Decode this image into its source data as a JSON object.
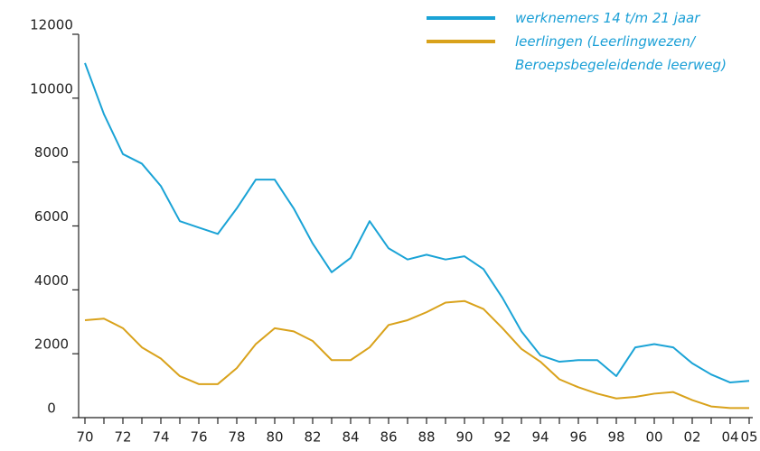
{
  "chart_data": {
    "type": "line",
    "categories": [
      "70",
      null,
      "72",
      null,
      "74",
      null,
      "76",
      null,
      "78",
      null,
      "80",
      null,
      "82",
      null,
      "84",
      null,
      "86",
      null,
      "88",
      null,
      "90",
      null,
      "92",
      null,
      "94",
      null,
      "96",
      null,
      "98",
      null,
      "00",
      null,
      "02",
      null,
      "04",
      "05"
    ],
    "series": [
      {
        "name": "werknemers 14 t/m 21 jaar",
        "color": "#1aa3d6",
        "values": [
          11100,
          9500,
          8250,
          7950,
          7250,
          6150,
          5950,
          5750,
          6550,
          7450,
          7450,
          6550,
          5450,
          4550,
          5000,
          6150,
          5300,
          4950,
          5100,
          4950,
          5050,
          4650,
          3750,
          2700,
          1950,
          1750,
          1800,
          1800,
          1300,
          2200,
          2300,
          2200,
          1700,
          1350,
          1100,
          1150
        ]
      },
      {
        "name": "leerlingen (Leerlingwezen/ Beroepsbegeleidende leerweg)",
        "color": "#d9a21b",
        "values": [
          3050,
          3100,
          2800,
          2200,
          1850,
          1300,
          1050,
          1050,
          1550,
          2300,
          2800,
          2700,
          2400,
          1800,
          1800,
          2200,
          2900,
          3050,
          3300,
          3600,
          3650,
          3400,
          2800,
          2150,
          1750,
          1200,
          950,
          750,
          600,
          650,
          750,
          800,
          550,
          350,
          300,
          300
        ]
      }
    ],
    "ylim": [
      0,
      12000
    ],
    "yticks": [
      0,
      2000,
      4000,
      6000,
      8000,
      10000,
      12000
    ],
    "grid": false
  }
}
